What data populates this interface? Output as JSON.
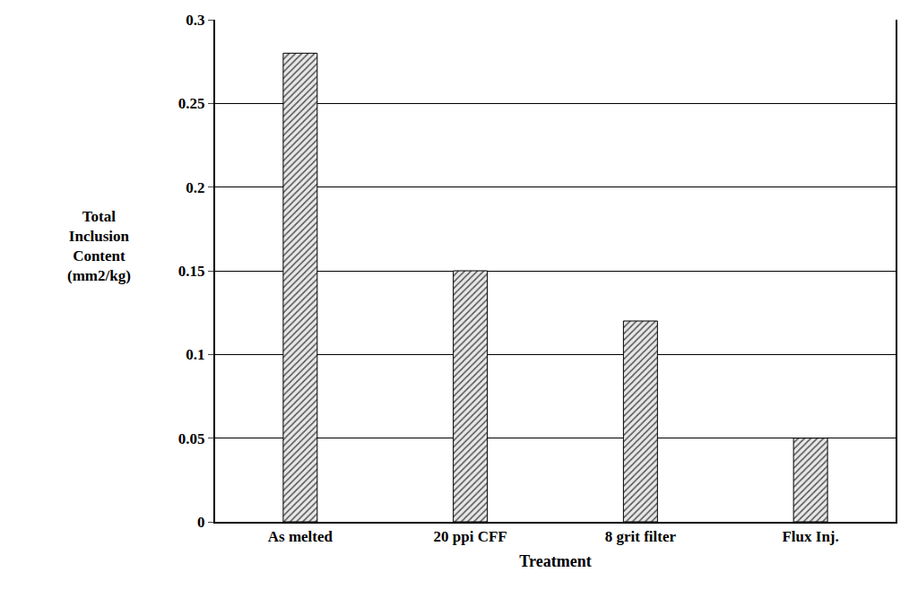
{
  "chart_data": {
    "type": "bar",
    "categories": [
      "As melted",
      "20 ppi CFF",
      "8 grit filter",
      "Flux Inj."
    ],
    "values": [
      0.28,
      0.15,
      0.12,
      0.05
    ],
    "color": "#b0b0b0",
    "x_label": "Treatment",
    "y_label": "Total Inclusion Content (mm2/kg)",
    "ylim": [
      0,
      0.3
    ],
    "yticks": [
      0,
      0.05,
      0.1,
      0.15,
      0.2,
      0.25,
      0.3
    ],
    "grid": true
  }
}
